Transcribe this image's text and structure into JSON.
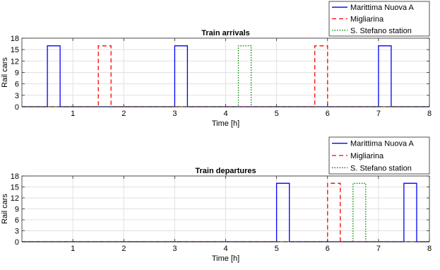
{
  "chart_data": [
    {
      "type": "line",
      "title": "Train arrivals",
      "xlabel": "Time [h]",
      "ylabel": "Rail cars",
      "xlim": [
        0,
        8
      ],
      "ylim": [
        0,
        18
      ],
      "xticks": [
        "1",
        "2",
        "3",
        "4",
        "5",
        "6",
        "7",
        "8"
      ],
      "yticks": [
        "0",
        "3",
        "6",
        "9",
        "12",
        "15",
        "18"
      ],
      "grid": true,
      "legend_position": "top-right, outside",
      "series": [
        {
          "name": "Marittima Nuova A",
          "color": "#0000ff",
          "dash": "solid",
          "x": [
            0,
            0.5,
            0.5,
            0.75,
            0.75,
            3.0,
            3.0,
            3.25,
            3.25,
            7.0,
            7.0,
            7.25,
            7.25,
            8
          ],
          "y": [
            0,
            0,
            16,
            16,
            0,
            0,
            16,
            16,
            0,
            0,
            16,
            16,
            0,
            0
          ]
        },
        {
          "name": "Migliarina",
          "color": "#ff0000",
          "dash": "dashed",
          "x": [
            0,
            1.5,
            1.5,
            1.75,
            1.75,
            5.75,
            5.75,
            6.0,
            6.0,
            8
          ],
          "y": [
            0,
            0,
            16,
            16,
            0,
            0,
            16,
            16,
            0,
            0
          ]
        },
        {
          "name": "S. Stefano station",
          "color": "#008000",
          "dash": "dotted",
          "x": [
            0,
            4.25,
            4.25,
            4.5,
            4.5,
            8
          ],
          "y": [
            0,
            0,
            16,
            16,
            0,
            0
          ]
        }
      ]
    },
    {
      "type": "line",
      "title": "Train departures",
      "xlabel": "Time [h]",
      "ylabel": "Rail cars",
      "xlim": [
        0,
        8
      ],
      "ylim": [
        0,
        18
      ],
      "xticks": [
        "1",
        "2",
        "3",
        "4",
        "5",
        "6",
        "7",
        "8"
      ],
      "yticks": [
        "0",
        "3",
        "6",
        "9",
        "12",
        "15",
        "18"
      ],
      "grid": true,
      "legend_position": "top-right, outside",
      "series": [
        {
          "name": "Marittima Nuova A",
          "color": "#0000ff",
          "dash": "solid",
          "x": [
            0,
            5.0,
            5.0,
            5.25,
            5.25,
            7.5,
            7.5,
            7.75,
            7.75,
            8
          ],
          "y": [
            0,
            0,
            16,
            16,
            0,
            0,
            16,
            16,
            0,
            0
          ]
        },
        {
          "name": "Migliarina",
          "color": "#ff0000",
          "dash": "dashed",
          "x": [
            0,
            6.0,
            6.0,
            6.25,
            6.25,
            8
          ],
          "y": [
            0,
            0,
            16,
            16,
            0,
            0
          ]
        },
        {
          "name": "S. Stefano station",
          "color": "#008000",
          "dash": "dotted",
          "x": [
            0,
            6.5,
            6.5,
            6.75,
            6.75,
            8
          ],
          "y": [
            0,
            0,
            16,
            16,
            0,
            0
          ]
        }
      ]
    }
  ]
}
